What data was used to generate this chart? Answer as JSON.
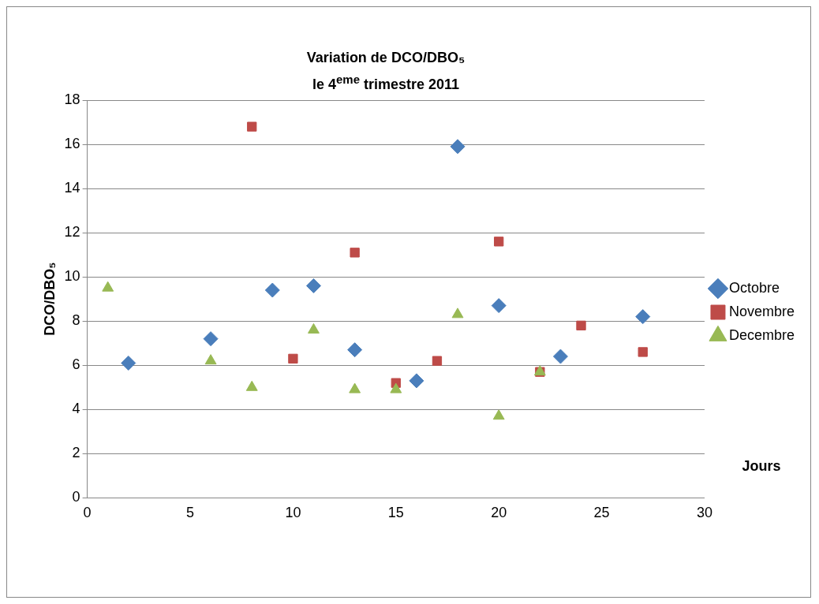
{
  "chart_data": {
    "type": "scatter",
    "title": "Variation de DCO/DBO₅\nle 4$^{eme}$ trimestre 2011",
    "xlabel": "Jours",
    "ylabel": "DCO/DBO₅",
    "xlim": [
      0,
      30
    ],
    "xticks": [
      0,
      5,
      10,
      15,
      20,
      25,
      30
    ],
    "ylim": [
      0,
      18
    ],
    "yticks": [
      0,
      2,
      4,
      6,
      8,
      10,
      12,
      14,
      16,
      18
    ],
    "grid": "y",
    "legend": "right",
    "series": [
      {
        "name": "Octobre",
        "color": "#4a7ebb",
        "marker": "diamond",
        "x": [
          2,
          6,
          9,
          11,
          13,
          16,
          18,
          20,
          23,
          27
        ],
        "values": [
          6.1,
          7.2,
          9.4,
          9.6,
          6.7,
          5.3,
          15.9,
          8.7,
          6.4,
          8.2
        ]
      },
      {
        "name": "Novembre",
        "color": "#be4b48",
        "marker": "square",
        "x": [
          8,
          10,
          13,
          15,
          17,
          20,
          22,
          24,
          27
        ],
        "values": [
          16.8,
          6.3,
          11.1,
          5.2,
          6.2,
          11.6,
          5.7,
          7.8,
          6.6
        ]
      },
      {
        "name": "Decembre",
        "color": "#98b954",
        "marker": "triangle",
        "x": [
          1,
          6,
          8,
          11,
          13,
          15,
          18,
          20,
          22
        ],
        "values": [
          9.5,
          6.2,
          5.0,
          7.6,
          4.9,
          4.9,
          8.3,
          3.7,
          5.7
        ]
      }
    ]
  }
}
